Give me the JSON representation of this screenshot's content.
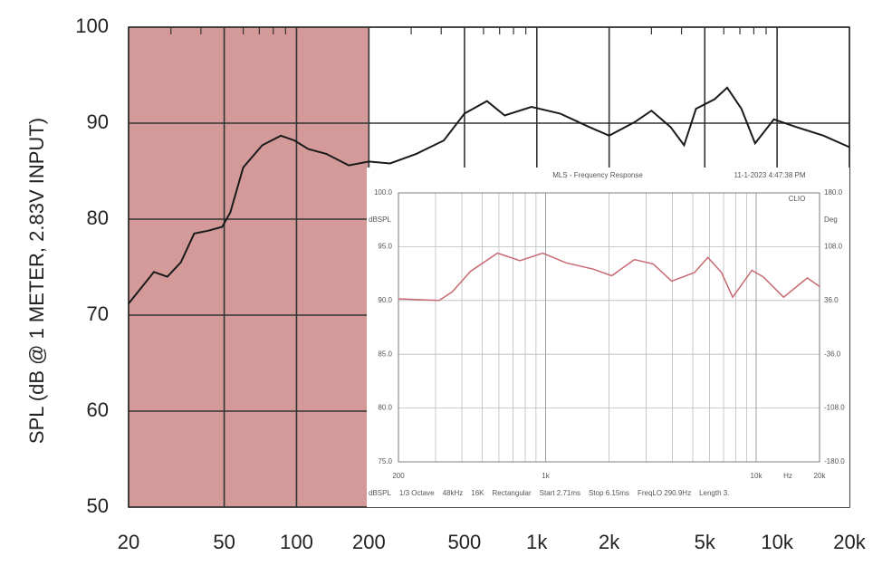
{
  "chart_data": [
    {
      "type": "line",
      "ylabel": "SPL (dB @ 1 METER, 2.83V INPUT)",
      "xscale": "log",
      "grid": true,
      "xlim": [
        20,
        20000
      ],
      "ylim": [
        50,
        100
      ],
      "xticks": [
        20,
        50,
        100,
        200,
        500,
        {
          "value": 1000,
          "label": "1k"
        },
        {
          "value": 2000,
          "label": "2k"
        },
        {
          "value": 5000,
          "label": "5k"
        },
        {
          "value": 10000,
          "label": "10k"
        },
        {
          "value": 20000,
          "label": "20k"
        }
      ],
      "yticks": [
        50,
        60,
        70,
        80,
        90,
        100
      ],
      "shaded_xlim": [
        20,
        200
      ],
      "shade_color": "#d49a9a",
      "color": "#1a1a1a",
      "x": [
        20,
        22.5,
        25.5,
        29,
        33,
        37.5,
        43,
        49,
        53,
        60,
        72,
        86,
        98,
        112,
        133,
        165,
        200,
        245,
        315,
        410,
        500,
        620,
        735,
        950,
        1250,
        1650,
        2000,
        2550,
        3000,
        3600,
        4100,
        4600,
        5500,
        6200,
        7100,
        8100,
        9700,
        12000,
        15600,
        20000
      ],
      "values": [
        71.2,
        72.8,
        74.5,
        74,
        75.5,
        78.5,
        78.8,
        79.2,
        80.7,
        85.4,
        87.7,
        88.7,
        88.2,
        87.3,
        86.8,
        85.6,
        86,
        85.8,
        86.8,
        88.2,
        91,
        92.3,
        90.8,
        91.7,
        91,
        89.6,
        88.7,
        90.1,
        91.3,
        89.6,
        87.7,
        91.5,
        92.5,
        93.7,
        91.5,
        87.9,
        90.4,
        89.6,
        88.7,
        87.5
      ]
    },
    {
      "type": "line",
      "title": "MLS - Frequency Response",
      "subtitle": "11-1-2023 4:47:38 PM",
      "brand": "CLIO",
      "ylabel": "dBSPL",
      "y2label": "Deg",
      "xlabel": "Hz",
      "xscale": "log",
      "grid": true,
      "xlim": [
        200,
        20000
      ],
      "ylim": [
        75,
        100
      ],
      "y2lim": [
        -180,
        180
      ],
      "xticks": [
        200,
        {
          "value": 1000,
          "label": "1k"
        },
        {
          "value": 10000,
          "label": "10k"
        },
        {
          "value": 20000,
          "label": "20k"
        }
      ],
      "yticks": [
        {
          "value": 75,
          "label": "75.0"
        },
        {
          "value": 80,
          "label": "80.0"
        },
        {
          "value": 85,
          "label": "85.0"
        },
        {
          "value": 90,
          "label": "90.0"
        },
        {
          "value": 95,
          "label": "95.0"
        },
        {
          "value": 100,
          "label": "100.0"
        }
      ],
      "y2ticks": [
        {
          "value": -180,
          "label": "-180.0"
        },
        {
          "value": -108,
          "label": "-108.0"
        },
        {
          "value": -36,
          "label": "-36.0"
        },
        {
          "value": 36,
          "label": "36.0"
        },
        {
          "value": 108,
          "label": "108.0"
        },
        {
          "value": 180,
          "label": "180.0"
        }
      ],
      "footer": [
        "dBSPL",
        "1/3 Octave",
        "48kHz",
        "16K",
        "Rectangular",
        "Start 2.71ms",
        "Stop 6.15ms",
        "FreqLO 290.9Hz",
        "Length 3."
      ],
      "color": "#c86a72",
      "x": [
        200,
        312,
        360,
        439,
        591,
        755,
        969,
        1250,
        1690,
        2060,
        2640,
        3240,
        3970,
        5100,
        5900,
        6840,
        7740,
        9540,
        10800,
        13500,
        17500,
        20000
      ],
      "values": [
        90.15,
        90,
        90.8,
        92.7,
        94.4,
        93.7,
        94.4,
        93.5,
        92.9,
        92.3,
        93.8,
        93.4,
        91.8,
        92.6,
        94,
        92.6,
        90.3,
        92.8,
        92.2,
        90.3,
        92.1,
        91.3
      ]
    }
  ]
}
